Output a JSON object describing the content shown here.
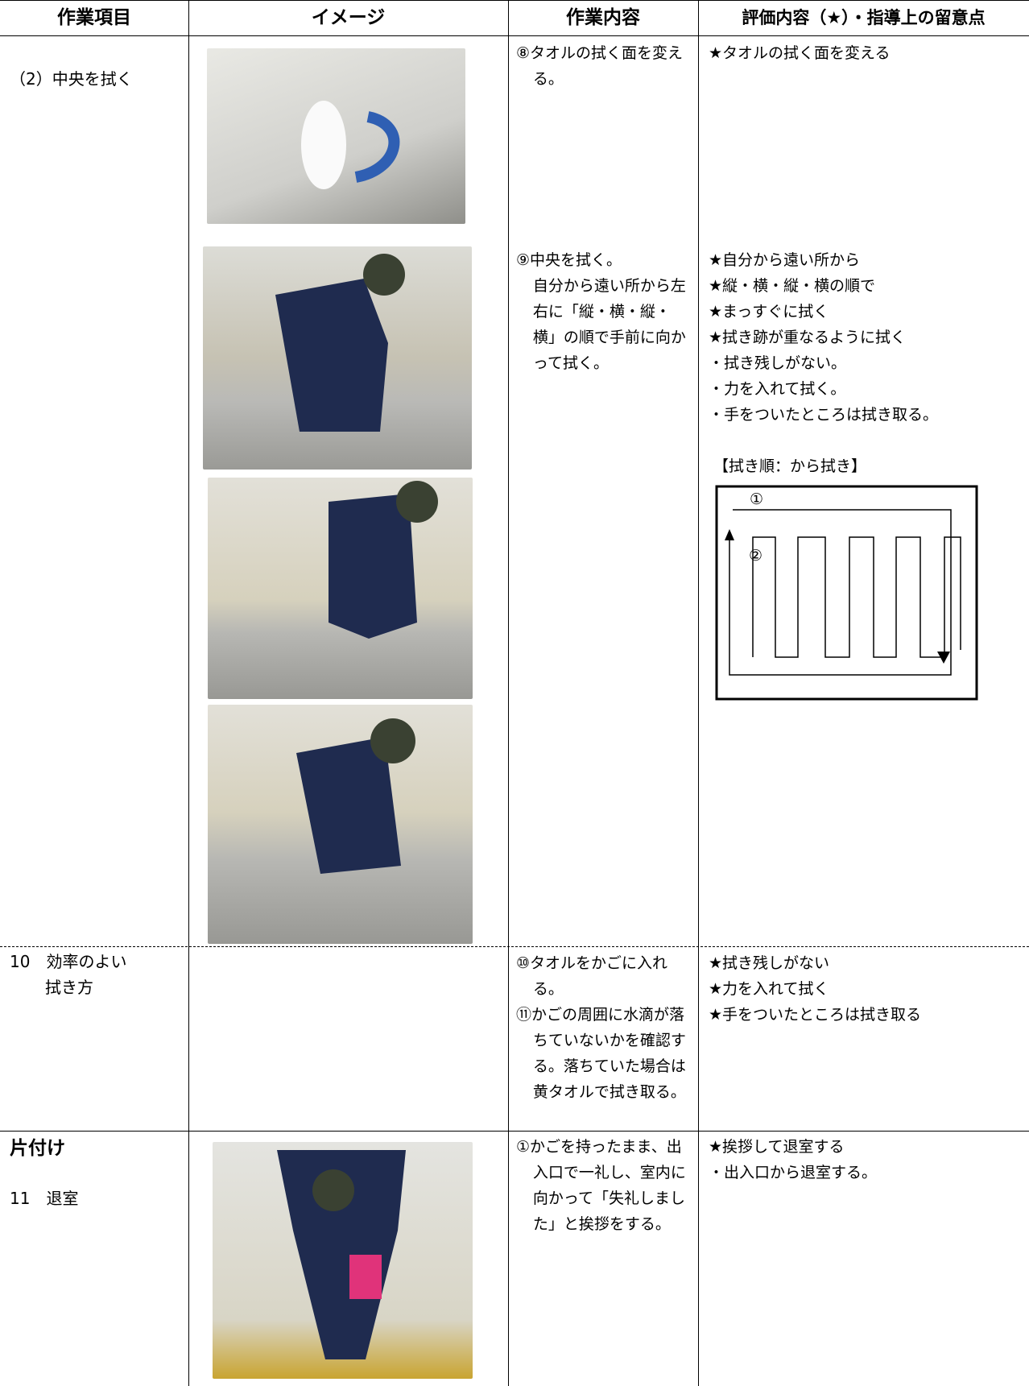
{
  "header": [
    "作業項目",
    "イメージ",
    "作業内容",
    "評価内容（★）・指導上の留意点"
  ],
  "rows": [
    {
      "item": "（2）中央を拭く",
      "content_a": "⑧タオルの拭く面を変える。",
      "content_b_head": "⑨中央を拭く。",
      "content_b_body": "自分から遠い所から左右に「縦・横・縦・横」の順で手前に向かって拭く。",
      "eval_a": "★タオルの拭く面を変える",
      "eval_b": [
        "★自分から遠い所から",
        "★縦・横・縦・横の順で",
        "★まっすぐに拭く",
        "★拭き跡が重なるように拭く",
        "・拭き残しがない。",
        "・力を入れて拭く。",
        "・手をついたところは拭き取る。"
      ],
      "diagram_title": "【拭き順：から拭き】",
      "diagram_labels": [
        "①",
        "②"
      ]
    },
    {
      "item_lines": [
        "10　効率のよい",
        "拭き方"
      ],
      "content": [
        "⑩タオルをかごに入れる。",
        "⑪かごの周囲に水滴が落ちていないかを確認する。落ちていた場合は黄タオルで拭き取る。"
      ],
      "eval": [
        "★拭き残しがない",
        "★力を入れて拭く",
        "★手をついたところは拭き取る"
      ]
    },
    {
      "section": "片付け",
      "item": "11　退室",
      "content": [
        "①かごを持ったまま、出入口で一礼し、室内に向かって「失礼しました」と挨拶をする。"
      ],
      "eval": [
        "★挨拶して退室する",
        "・出入口から退室する。"
      ]
    }
  ]
}
